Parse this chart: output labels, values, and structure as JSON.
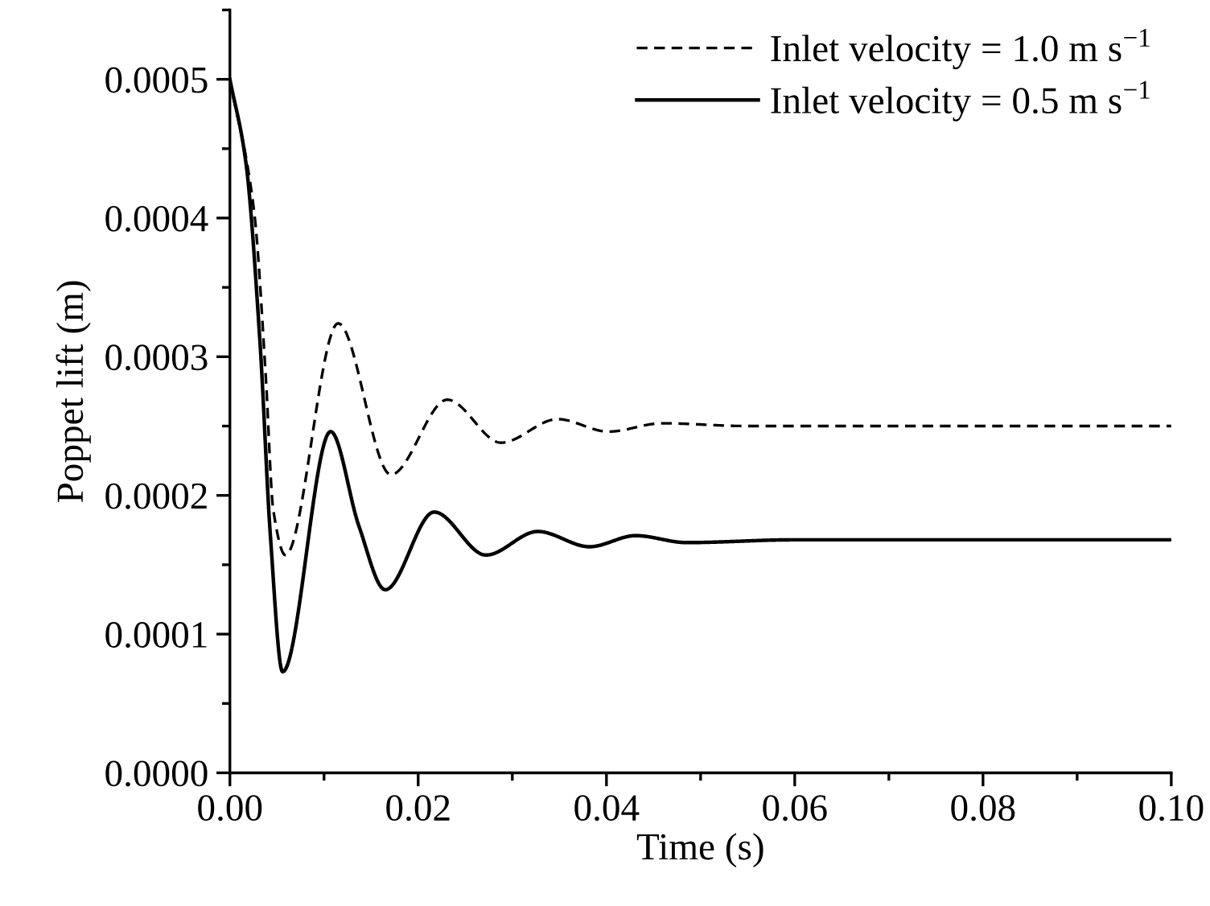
{
  "chart_data": {
    "type": "line",
    "xlabel": "Time (s)",
    "ylabel": "Poppet lift (m)",
    "xlim": [
      0,
      0.1
    ],
    "ylim": [
      0,
      0.00055
    ],
    "xticks": [
      {
        "value": 0,
        "label": "0.00"
      },
      {
        "value": 0.02,
        "label": "0.02"
      },
      {
        "value": 0.04,
        "label": "0.04"
      },
      {
        "value": 0.06,
        "label": "0.06"
      },
      {
        "value": 0.08,
        "label": "0.08"
      },
      {
        "value": 0.1,
        "label": "0.10"
      }
    ],
    "yticks": [
      {
        "value": 0,
        "label": "0.0000"
      },
      {
        "value": 0.0001,
        "label": "0.0001"
      },
      {
        "value": 0.0002,
        "label": "0.0002"
      },
      {
        "value": 0.0003,
        "label": "0.0003"
      },
      {
        "value": 0.0004,
        "label": "0.0004"
      },
      {
        "value": 0.0005,
        "label": "0.0005"
      }
    ],
    "grid": false,
    "legend": "top right",
    "marker": "none",
    "series": [
      {
        "name": "Inlet velocity = 1.0 m s$^{−1}$",
        "color": "#000000",
        "line_style": "dashed",
        "x": [
          0,
          0.0026,
          0.0038,
          0.0046,
          0.0059,
          0.0115,
          0.0171,
          0.0231,
          0.0288,
          0.0348,
          0.0402,
          0.0459,
          0.055,
          0.07,
          0.1
        ],
        "values": [
          0.0005,
          0.000403,
          0.000287,
          0.00019,
          0.000157,
          0.000324,
          0.000215,
          0.000269,
          0.000238,
          0.000255,
          0.000246,
          0.000252,
          0.00025,
          0.00025,
          0.00025
        ]
      },
      {
        "name": "Inlet velocity = 0.5 m s$^{−1}$",
        "color": "#000000",
        "line_style": "solid",
        "x": [
          0,
          0.0017,
          0.0032,
          0.0043,
          0.0056,
          0.0107,
          0.0137,
          0.0165,
          0.0217,
          0.0272,
          0.0327,
          0.0382,
          0.0431,
          0.0485,
          0.06,
          0.1
        ],
        "values": [
          0.0005,
          0.00044,
          0.00031,
          0.000171,
          7.29e-05,
          0.000246,
          0.000178,
          0.000132,
          0.000188,
          0.000157,
          0.000174,
          0.000163,
          0.000171,
          0.000166,
          0.000168,
          0.000168
        ]
      }
    ]
  }
}
